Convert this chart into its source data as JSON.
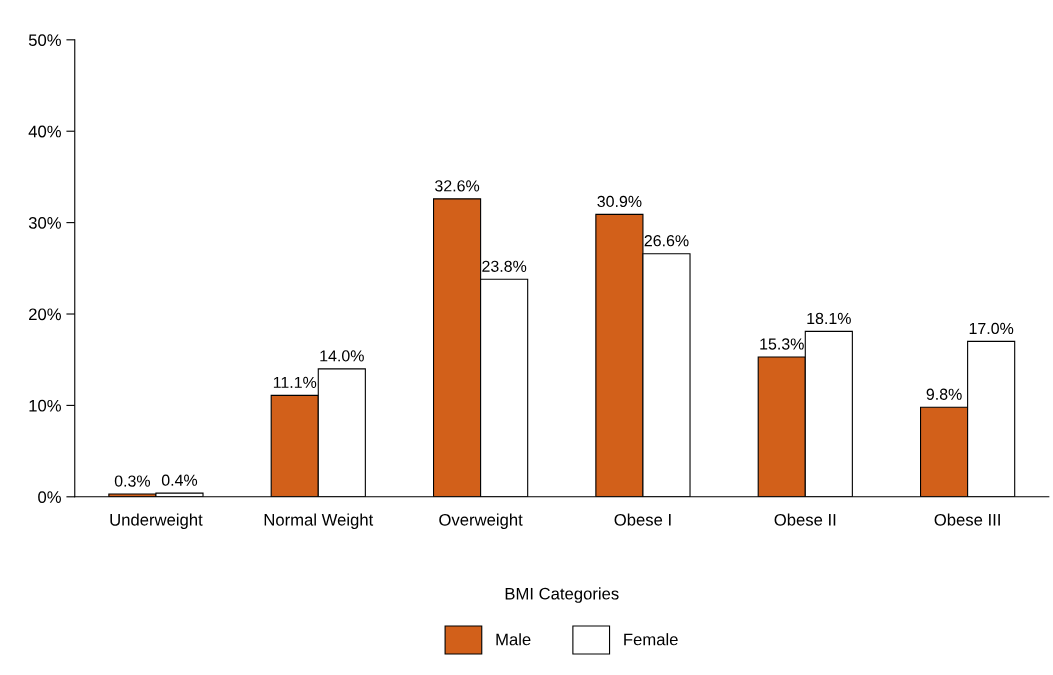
{
  "chart_data": {
    "type": "bar",
    "xlabel": "BMI Categories",
    "categories": [
      "Underweight",
      "Normal Weight",
      "Overweight",
      "Obese I",
      "Obese II",
      "Obese III"
    ],
    "series": [
      {
        "name": "Male",
        "color": "#d2601a",
        "values": [
          0.3,
          11.1,
          32.6,
          30.9,
          15.3,
          9.8
        ],
        "value_labels": [
          "0.3%",
          "11.1%",
          "32.6%",
          "30.9%",
          "15.3%",
          "9.8%"
        ]
      },
      {
        "name": "Female",
        "color": "#ffffff",
        "values": [
          0.4,
          14.0,
          23.8,
          26.6,
          18.1,
          17.0
        ],
        "value_labels": [
          "0.4%",
          "14.0%",
          "23.8%",
          "26.6%",
          "18.1%",
          "17.0%"
        ]
      }
    ],
    "ylim": [
      0,
      50
    ],
    "yticks": [
      {
        "value": 0,
        "label": "0%"
      },
      {
        "value": 10,
        "label": "10%"
      },
      {
        "value": 20,
        "label": "20%"
      },
      {
        "value": 30,
        "label": "30%"
      },
      {
        "value": 40,
        "label": "40%"
      },
      {
        "value": 50,
        "label": "50%"
      }
    ],
    "grid": false,
    "legend": "bottom"
  }
}
